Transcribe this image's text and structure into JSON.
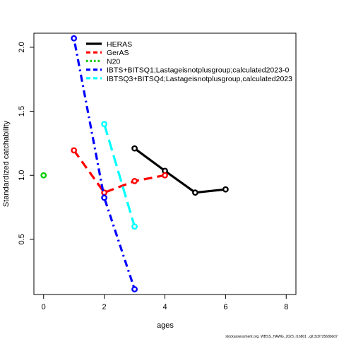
{
  "chart_data": {
    "type": "line",
    "title": "",
    "xlabel": "ages",
    "ylabel": "Standardized catchability",
    "xlim": [
      -0.32,
      8.32
    ],
    "ylim": [
      0.069,
      2.11
    ],
    "xticks": [
      0,
      2,
      4,
      6,
      8
    ],
    "yticks": [
      0.5,
      1.0,
      1.5,
      2.0
    ],
    "xtick_labels": [
      "0",
      "2",
      "4",
      "6",
      "8"
    ],
    "ytick_labels": [
      "0.5",
      "1.0",
      "1.5",
      "2.0"
    ],
    "grid": false,
    "legend_position": "top-left",
    "series": [
      {
        "name": "HERAS",
        "color": "#000000",
        "dash": "solid",
        "x": [
          3,
          4,
          5,
          6
        ],
        "y": [
          1.21,
          1.035,
          0.865,
          0.89
        ]
      },
      {
        "name": "GerAS",
        "color": "#ff0000",
        "dash": "dashed",
        "x": [
          1,
          2,
          3,
          4
        ],
        "y": [
          1.195,
          0.865,
          0.955,
          1.0
        ]
      },
      {
        "name": "N20",
        "color": "#00cd00",
        "dash": "dotted",
        "x": [
          0
        ],
        "y": [
          1.0
        ]
      },
      {
        "name": "IBTS+BITSQ1;Lastageisnotplusgroup;calculated2023-0",
        "color": "#0000ff",
        "dash": "dotdash",
        "x": [
          1,
          2,
          3
        ],
        "y": [
          2.07,
          0.825,
          0.11
        ]
      },
      {
        "name": "IBTSQ3+BITSQ4;Lastageisnotplusgroup,calculated2023",
        "color": "#00ffff",
        "dash": "longdash",
        "x": [
          2,
          3
        ],
        "y": [
          1.4,
          0.6
        ]
      }
    ]
  },
  "footer": "stockassessment.org, WBSS_HAWG_2023, r16801 , git:3c872568b0d7"
}
